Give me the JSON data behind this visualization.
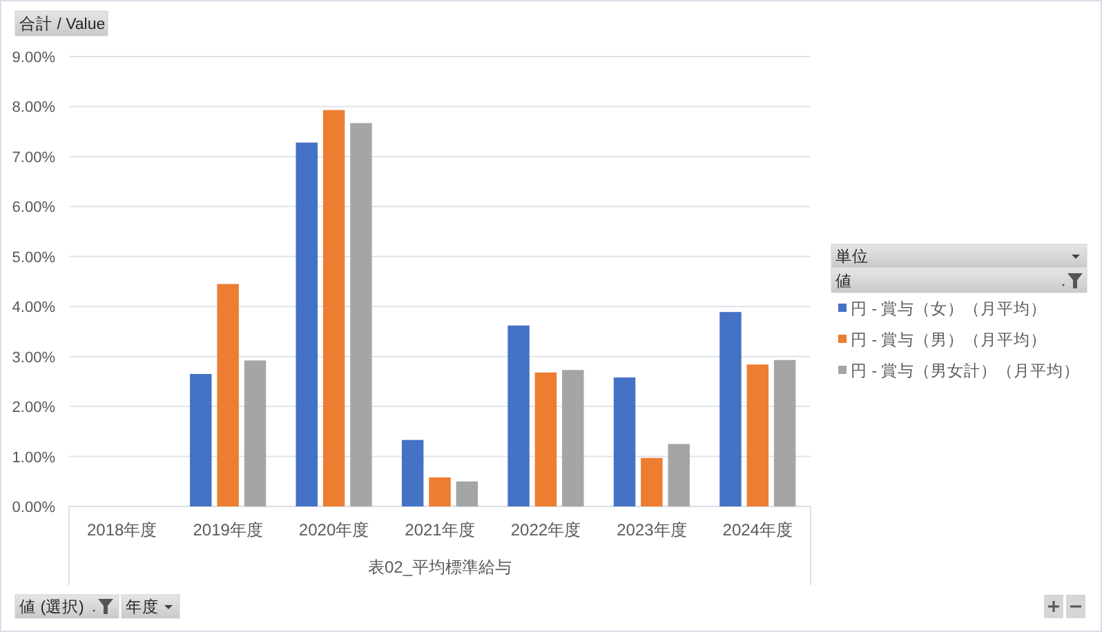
{
  "chart_data": {
    "type": "bar",
    "categories": [
      "2018年度",
      "2019年度",
      "2020年度",
      "2021年度",
      "2022年度",
      "2023年度",
      "2024年度"
    ],
    "series": [
      {
        "name": "円 - 賞与（女）（月平均）",
        "color": "#4472c4",
        "values": [
          null,
          2.65,
          7.28,
          1.33,
          3.62,
          2.58,
          3.89
        ]
      },
      {
        "name": "円 - 賞与（男）（月平均）",
        "color": "#ed7d31",
        "values": [
          null,
          4.45,
          7.93,
          0.58,
          2.68,
          0.97,
          2.84
        ]
      },
      {
        "name": "円 - 賞与（男女計）（月平均）",
        "color": "#a5a5a5",
        "values": [
          null,
          2.92,
          7.67,
          0.5,
          2.73,
          1.25,
          2.93
        ]
      }
    ],
    "ylim": [
      0,
      9
    ],
    "yticks": [
      {
        "value": 0,
        "label": "0.00%"
      },
      {
        "value": 1,
        "label": "1.00%"
      },
      {
        "value": 2,
        "label": "2.00%"
      },
      {
        "value": 3,
        "label": "3.00%"
      },
      {
        "value": 4,
        "label": "4.00%"
      },
      {
        "value": 5,
        "label": "5.00%"
      },
      {
        "value": 6,
        "label": "6.00%"
      },
      {
        "value": 7,
        "label": "7.00%"
      },
      {
        "value": 8,
        "label": "8.00%"
      },
      {
        "value": 9,
        "label": "9.00%"
      }
    ],
    "xlabel": "表02_平均標準給与",
    "annotations": [
      "合計 / Value",
      "単位",
      "値",
      "値 (選択)",
      "年度"
    ],
    "grid": "y",
    "legend": "right"
  }
}
